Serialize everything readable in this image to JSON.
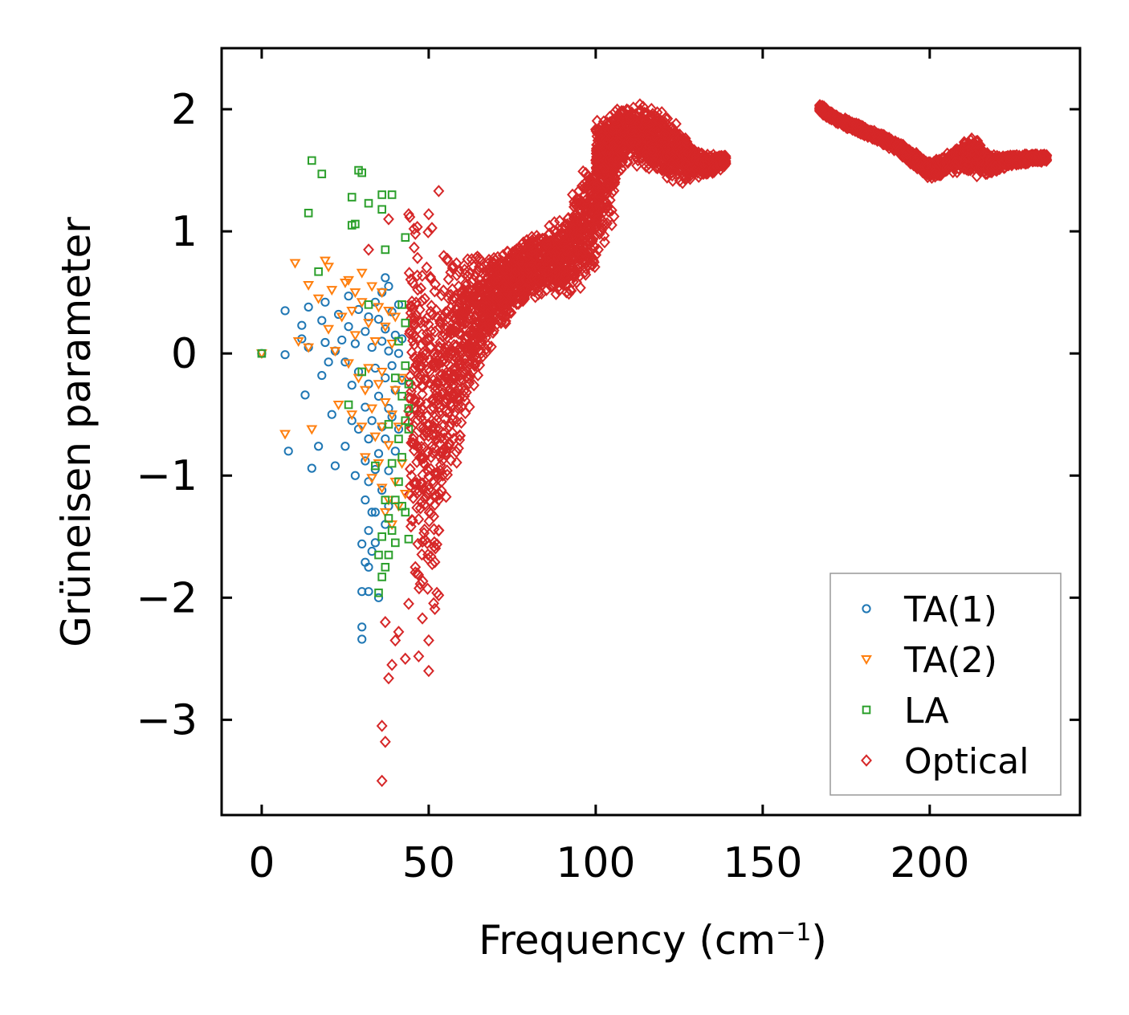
{
  "chart_data": {
    "type": "scatter",
    "title": "",
    "xlabel": "Frequency (cm",
    "xlabel_exponent": "−1",
    "xlabel_close": ")",
    "ylabel": "Grüneisen parameter",
    "xlim": [
      -12,
      245
    ],
    "ylim": [
      -3.78,
      2.5
    ],
    "xticks": [
      0,
      50,
      100,
      150,
      200
    ],
    "xtick_labels": [
      "0",
      "50",
      "100",
      "150",
      "200"
    ],
    "yticks": [
      -3,
      -2,
      -1,
      0,
      1,
      2
    ],
    "ytick_labels": [
      "−3",
      "−2",
      "−1",
      "0",
      "1",
      "2"
    ],
    "grid": false,
    "legend_position": "bottom-right",
    "series": [
      {
        "name": "TA(1)",
        "marker": "circle",
        "color": "#1f77b4",
        "points": [
          [
            0,
            0
          ],
          [
            7,
            0.35
          ],
          [
            7,
            -0.01
          ],
          [
            8,
            -0.8
          ],
          [
            12,
            0.23
          ],
          [
            12,
            0.12
          ],
          [
            13,
            -0.34
          ],
          [
            14,
            0.38
          ],
          [
            14,
            0.05
          ],
          [
            15,
            -0.94
          ],
          [
            17,
            -0.76
          ],
          [
            18,
            0.27
          ],
          [
            18,
            -0.18
          ],
          [
            19,
            0.42
          ],
          [
            19,
            0.09
          ],
          [
            20,
            -0.07
          ],
          [
            21,
            -0.5
          ],
          [
            22,
            0.02
          ],
          [
            22,
            -0.92
          ],
          [
            23,
            0.32
          ],
          [
            24,
            0.11
          ],
          [
            25,
            -0.07
          ],
          [
            25,
            -0.76
          ],
          [
            26,
            0.47
          ],
          [
            26,
            0.22
          ],
          [
            27,
            -0.26
          ],
          [
            27,
            -0.55
          ],
          [
            28,
            0.08
          ],
          [
            28,
            -1.0
          ],
          [
            29,
            0.36
          ],
          [
            29,
            -0.15
          ],
          [
            29,
            -0.62
          ],
          [
            30,
            -1.56
          ],
          [
            30,
            -1.95
          ],
          [
            30,
            -2.24
          ],
          [
            30,
            -2.34
          ],
          [
            31,
            0.18
          ],
          [
            31,
            -0.44
          ],
          [
            31,
            -0.88
          ],
          [
            31,
            -1.2
          ],
          [
            31,
            -1.71
          ],
          [
            32,
            0.3
          ],
          [
            32,
            -0.25
          ],
          [
            32,
            -0.7
          ],
          [
            32,
            -1.05
          ],
          [
            32,
            -1.45
          ],
          [
            32,
            -1.75
          ],
          [
            32,
            -1.95
          ],
          [
            33,
            0.05
          ],
          [
            33,
            -0.55
          ],
          [
            33,
            -1.3
          ],
          [
            33,
            -1.62
          ],
          [
            34,
            0.42
          ],
          [
            34,
            -0.12
          ],
          [
            34,
            -0.95
          ],
          [
            34,
            -1.3
          ],
          [
            34,
            -1.55
          ],
          [
            35,
            0.28
          ],
          [
            35,
            -0.35
          ],
          [
            35,
            -0.82
          ],
          [
            35,
            -2.0
          ],
          [
            36,
            0.5
          ],
          [
            36,
            0.1
          ],
          [
            36,
            -0.6
          ],
          [
            36,
            -1.12
          ],
          [
            37,
            0.62
          ],
          [
            37,
            0.2
          ],
          [
            37,
            -0.2
          ],
          [
            37,
            -0.7
          ],
          [
            37,
            -1.4
          ],
          [
            38,
            0.55
          ],
          [
            38,
            0.02
          ],
          [
            38,
            -0.45
          ],
          [
            38,
            -0.96
          ],
          [
            38,
            -1.25
          ],
          [
            39,
            0.34
          ],
          [
            39,
            -0.1
          ],
          [
            39,
            -0.52
          ],
          [
            40,
            0.15
          ],
          [
            40,
            -0.3
          ],
          [
            40,
            -0.8
          ],
          [
            41,
            0.4
          ],
          [
            41,
            0.0
          ],
          [
            41,
            -0.62
          ],
          [
            42,
            0.12
          ],
          [
            42,
            -0.22
          ]
        ]
      },
      {
        "name": "TA(2)",
        "marker": "triangle-down",
        "color": "#ff7f0e",
        "points": [
          [
            0,
            0
          ],
          [
            7,
            -0.66
          ],
          [
            10,
            0.74
          ],
          [
            11,
            0.1
          ],
          [
            14,
            0.56
          ],
          [
            14,
            0.05
          ],
          [
            15,
            -0.62
          ],
          [
            17,
            0.45
          ],
          [
            19,
            0.76
          ],
          [
            20,
            0.71
          ],
          [
            20,
            0.2
          ],
          [
            21,
            0.52
          ],
          [
            22,
            0.02
          ],
          [
            23,
            -0.42
          ],
          [
            24,
            0.3
          ],
          [
            25,
            0.58
          ],
          [
            26,
            0.6
          ],
          [
            26,
            -0.08
          ],
          [
            27,
            0.35
          ],
          [
            27,
            -0.5
          ],
          [
            28,
            0.5
          ],
          [
            28,
            0.15
          ],
          [
            29,
            -0.2
          ],
          [
            30,
            0.66
          ],
          [
            30,
            0.42
          ],
          [
            30,
            -0.6
          ],
          [
            31,
            -0.3
          ],
          [
            31,
            -0.85
          ],
          [
            32,
            0.25
          ],
          [
            32,
            -0.12
          ],
          [
            33,
            0.55
          ],
          [
            33,
            -0.45
          ],
          [
            33,
            -1.02
          ],
          [
            34,
            0.1
          ],
          [
            34,
            -0.68
          ],
          [
            35,
            0.38
          ],
          [
            35,
            -0.25
          ],
          [
            35,
            -0.9
          ],
          [
            36,
            0.5
          ],
          [
            36,
            -0.15
          ],
          [
            36,
            -0.6
          ],
          [
            36,
            -1.1
          ],
          [
            37,
            0.22
          ],
          [
            37,
            -0.4
          ],
          [
            37,
            -1.3
          ],
          [
            38,
            0.35
          ],
          [
            38,
            -0.75
          ],
          [
            38,
            -1.2
          ],
          [
            39,
            0.08
          ],
          [
            39,
            -0.5
          ],
          [
            39,
            -1.4
          ],
          [
            40,
            0.3
          ],
          [
            40,
            -0.3
          ],
          [
            40,
            -1.05
          ],
          [
            41,
            -0.6
          ],
          [
            41,
            -1.25
          ],
          [
            42,
            -0.2
          ],
          [
            42,
            -0.9
          ],
          [
            43,
            -1.15
          ]
        ]
      },
      {
        "name": "LA",
        "marker": "square",
        "color": "#2ca02c",
        "points": [
          [
            0,
            0
          ],
          [
            14,
            1.15
          ],
          [
            15,
            1.58
          ],
          [
            17,
            0.67
          ],
          [
            18,
            1.47
          ],
          [
            27,
            1.28
          ],
          [
            27,
            1.05
          ],
          [
            28,
            1.06
          ],
          [
            29,
            1.5
          ],
          [
            30,
            1.48
          ],
          [
            32,
            1.23
          ],
          [
            36,
            1.3
          ],
          [
            36,
            1.18
          ],
          [
            37,
            0.85
          ],
          [
            39,
            1.3
          ],
          [
            43,
            0.95
          ],
          [
            26,
            -0.42
          ],
          [
            30,
            -0.15
          ],
          [
            32,
            0.4
          ],
          [
            34,
            -0.92
          ],
          [
            35,
            -1.96
          ],
          [
            35,
            -1.65
          ],
          [
            36,
            -1.83
          ],
          [
            36,
            -1.5
          ],
          [
            37,
            -1.2
          ],
          [
            37,
            -1.75
          ],
          [
            38,
            -0.58
          ],
          [
            38,
            -1.35
          ],
          [
            38,
            -1.65
          ],
          [
            39,
            -0.9
          ],
          [
            39,
            -1.45
          ],
          [
            40,
            -0.2
          ],
          [
            40,
            -1.2
          ],
          [
            40,
            -1.55
          ],
          [
            41,
            0.1
          ],
          [
            41,
            -0.7
          ],
          [
            41,
            -1.05
          ],
          [
            42,
            0.4
          ],
          [
            42,
            -0.35
          ],
          [
            42,
            -1.25
          ],
          [
            43,
            -0.1
          ],
          [
            43,
            -0.55
          ],
          [
            43,
            -1.3
          ],
          [
            44,
            -0.45
          ],
          [
            44,
            -0.62
          ],
          [
            44,
            -1.52
          ],
          [
            43,
            0.25
          ],
          [
            44,
            -0.25
          ],
          [
            42,
            -0.85
          ]
        ]
      },
      {
        "name": "Optical",
        "marker": "diamond",
        "color": "#d62728",
        "points": [
          [
            36,
            -3.5
          ],
          [
            36,
            -3.05
          ],
          [
            37,
            -3.18
          ],
          [
            38,
            -2.66
          ],
          [
            39,
            -2.55
          ],
          [
            40,
            -2.35
          ],
          [
            41,
            -2.28
          ],
          [
            43,
            -2.5
          ],
          [
            47,
            -2.48
          ],
          [
            50,
            -2.6
          ],
          [
            50,
            -2.35
          ],
          [
            37,
            -2.2
          ],
          [
            44,
            -2.05
          ],
          [
            46,
            -1.75
          ],
          [
            53,
            -1.98
          ],
          [
            38,
            1.1
          ],
          [
            44,
            1.14
          ],
          [
            50,
            1.14
          ],
          [
            53,
            1.33
          ],
          [
            46,
            0.98
          ],
          [
            32,
            0.85
          ]
        ],
        "trend": [
          {
            "x": [
              44,
              46,
              48,
              50,
              52,
              54,
              56,
              58,
              60,
              62,
              64,
              66,
              68,
              70
            ],
            "y": [
              0.05,
              -0.3,
              -0.55,
              -0.65,
              -0.55,
              -0.4,
              -0.2,
              -0.05,
              0.1,
              0.2,
              0.3,
              0.35,
              0.4,
              0.45
            ],
            "spread": [
              1.8,
              1.9,
              1.9,
              1.8,
              1.6,
              1.4,
              1.2,
              1.0,
              0.85,
              0.7,
              0.6,
              0.5,
              0.45,
              0.4
            ]
          },
          {
            "x": [
              70,
              75,
              80,
              85,
              90,
              95,
              100,
              103,
              106
            ],
            "y": [
              0.45,
              0.6,
              0.7,
              0.75,
              0.8,
              0.95,
              1.25,
              1.45,
              1.6
            ],
            "spread": [
              0.35,
              0.3,
              0.3,
              0.3,
              0.35,
              0.5,
              0.6,
              0.55,
              0.5
            ]
          },
          {
            "x": [
              100,
              105,
              110,
              115,
              120,
              125,
              130,
              135,
              139
            ],
            "y": [
              1.6,
              1.7,
              1.8,
              1.78,
              1.72,
              1.62,
              1.55,
              1.55,
              1.58
            ],
            "spread": [
              0.35,
              0.3,
              0.25,
              0.3,
              0.3,
              0.25,
              0.12,
              0.08,
              0.05
            ]
          },
          {
            "x": [
              167,
              172,
              178,
              184,
              190,
              196,
              200,
              205,
              210,
              214,
              218,
              224,
              230,
              235
            ],
            "y": [
              2.01,
              1.92,
              1.85,
              1.78,
              1.7,
              1.58,
              1.5,
              1.55,
              1.62,
              1.6,
              1.55,
              1.58,
              1.6,
              1.6
            ],
            "spread": [
              0.04,
              0.04,
              0.04,
              0.04,
              0.05,
              0.07,
              0.08,
              0.1,
              0.12,
              0.18,
              0.08,
              0.05,
              0.04,
              0.03
            ]
          }
        ]
      }
    ]
  }
}
